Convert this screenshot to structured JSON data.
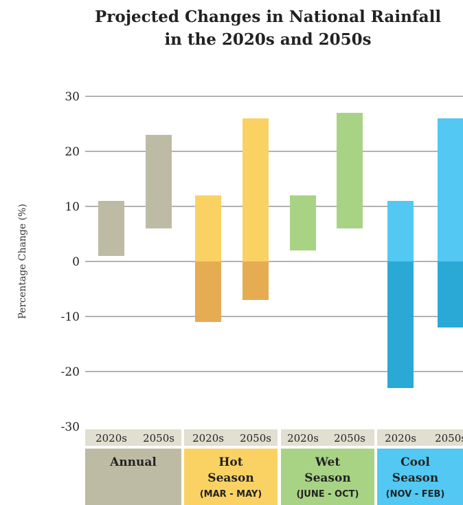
{
  "title_line1": "Projected Changes in National Rainfall",
  "title_line2": "in the 2020s and 2050s",
  "chart_data": {
    "type": "bar",
    "subtype": "floating-range",
    "ylabel": "Percentage Change (%)",
    "ylim": [
      -30,
      30
    ],
    "yticks": [
      30,
      20,
      10,
      0,
      -10,
      -20,
      -30
    ],
    "grid": true,
    "groups": [
      {
        "label_lines": [
          "Annual"
        ],
        "color": "#bdbba3",
        "neg_color": "#bdbba3",
        "bars": [
          {
            "label": "2020s",
            "min": 1,
            "max": 11
          },
          {
            "label": "2050s",
            "min": 6,
            "max": 23
          }
        ]
      },
      {
        "label_lines": [
          "Hot",
          "Season",
          "(MAR - MAY)"
        ],
        "color": "#fad264",
        "neg_color": "#e6ac52",
        "bars": [
          {
            "label": "2020s",
            "min": -11,
            "max": 12
          },
          {
            "label": "2050s",
            "min": -7,
            "max": 26
          }
        ]
      },
      {
        "label_lines": [
          "Wet",
          "Season",
          "(JUNE - OCT)"
        ],
        "color": "#a8d385",
        "neg_color": "#a8d385",
        "bars": [
          {
            "label": "2020s",
            "min": 2,
            "max": 12
          },
          {
            "label": "2050s",
            "min": 6,
            "max": 27
          }
        ]
      },
      {
        "label_lines": [
          "Cool",
          "Season",
          "(NOV - FEB)"
        ],
        "color": "#52c8f3",
        "neg_color": "#2aa8d6",
        "bars": [
          {
            "label": "2020s",
            "min": -23,
            "max": 11
          },
          {
            "label": "2050s",
            "min": -12,
            "max": 26
          }
        ]
      }
    ],
    "label_strip_color": "#e0dfd0"
  }
}
